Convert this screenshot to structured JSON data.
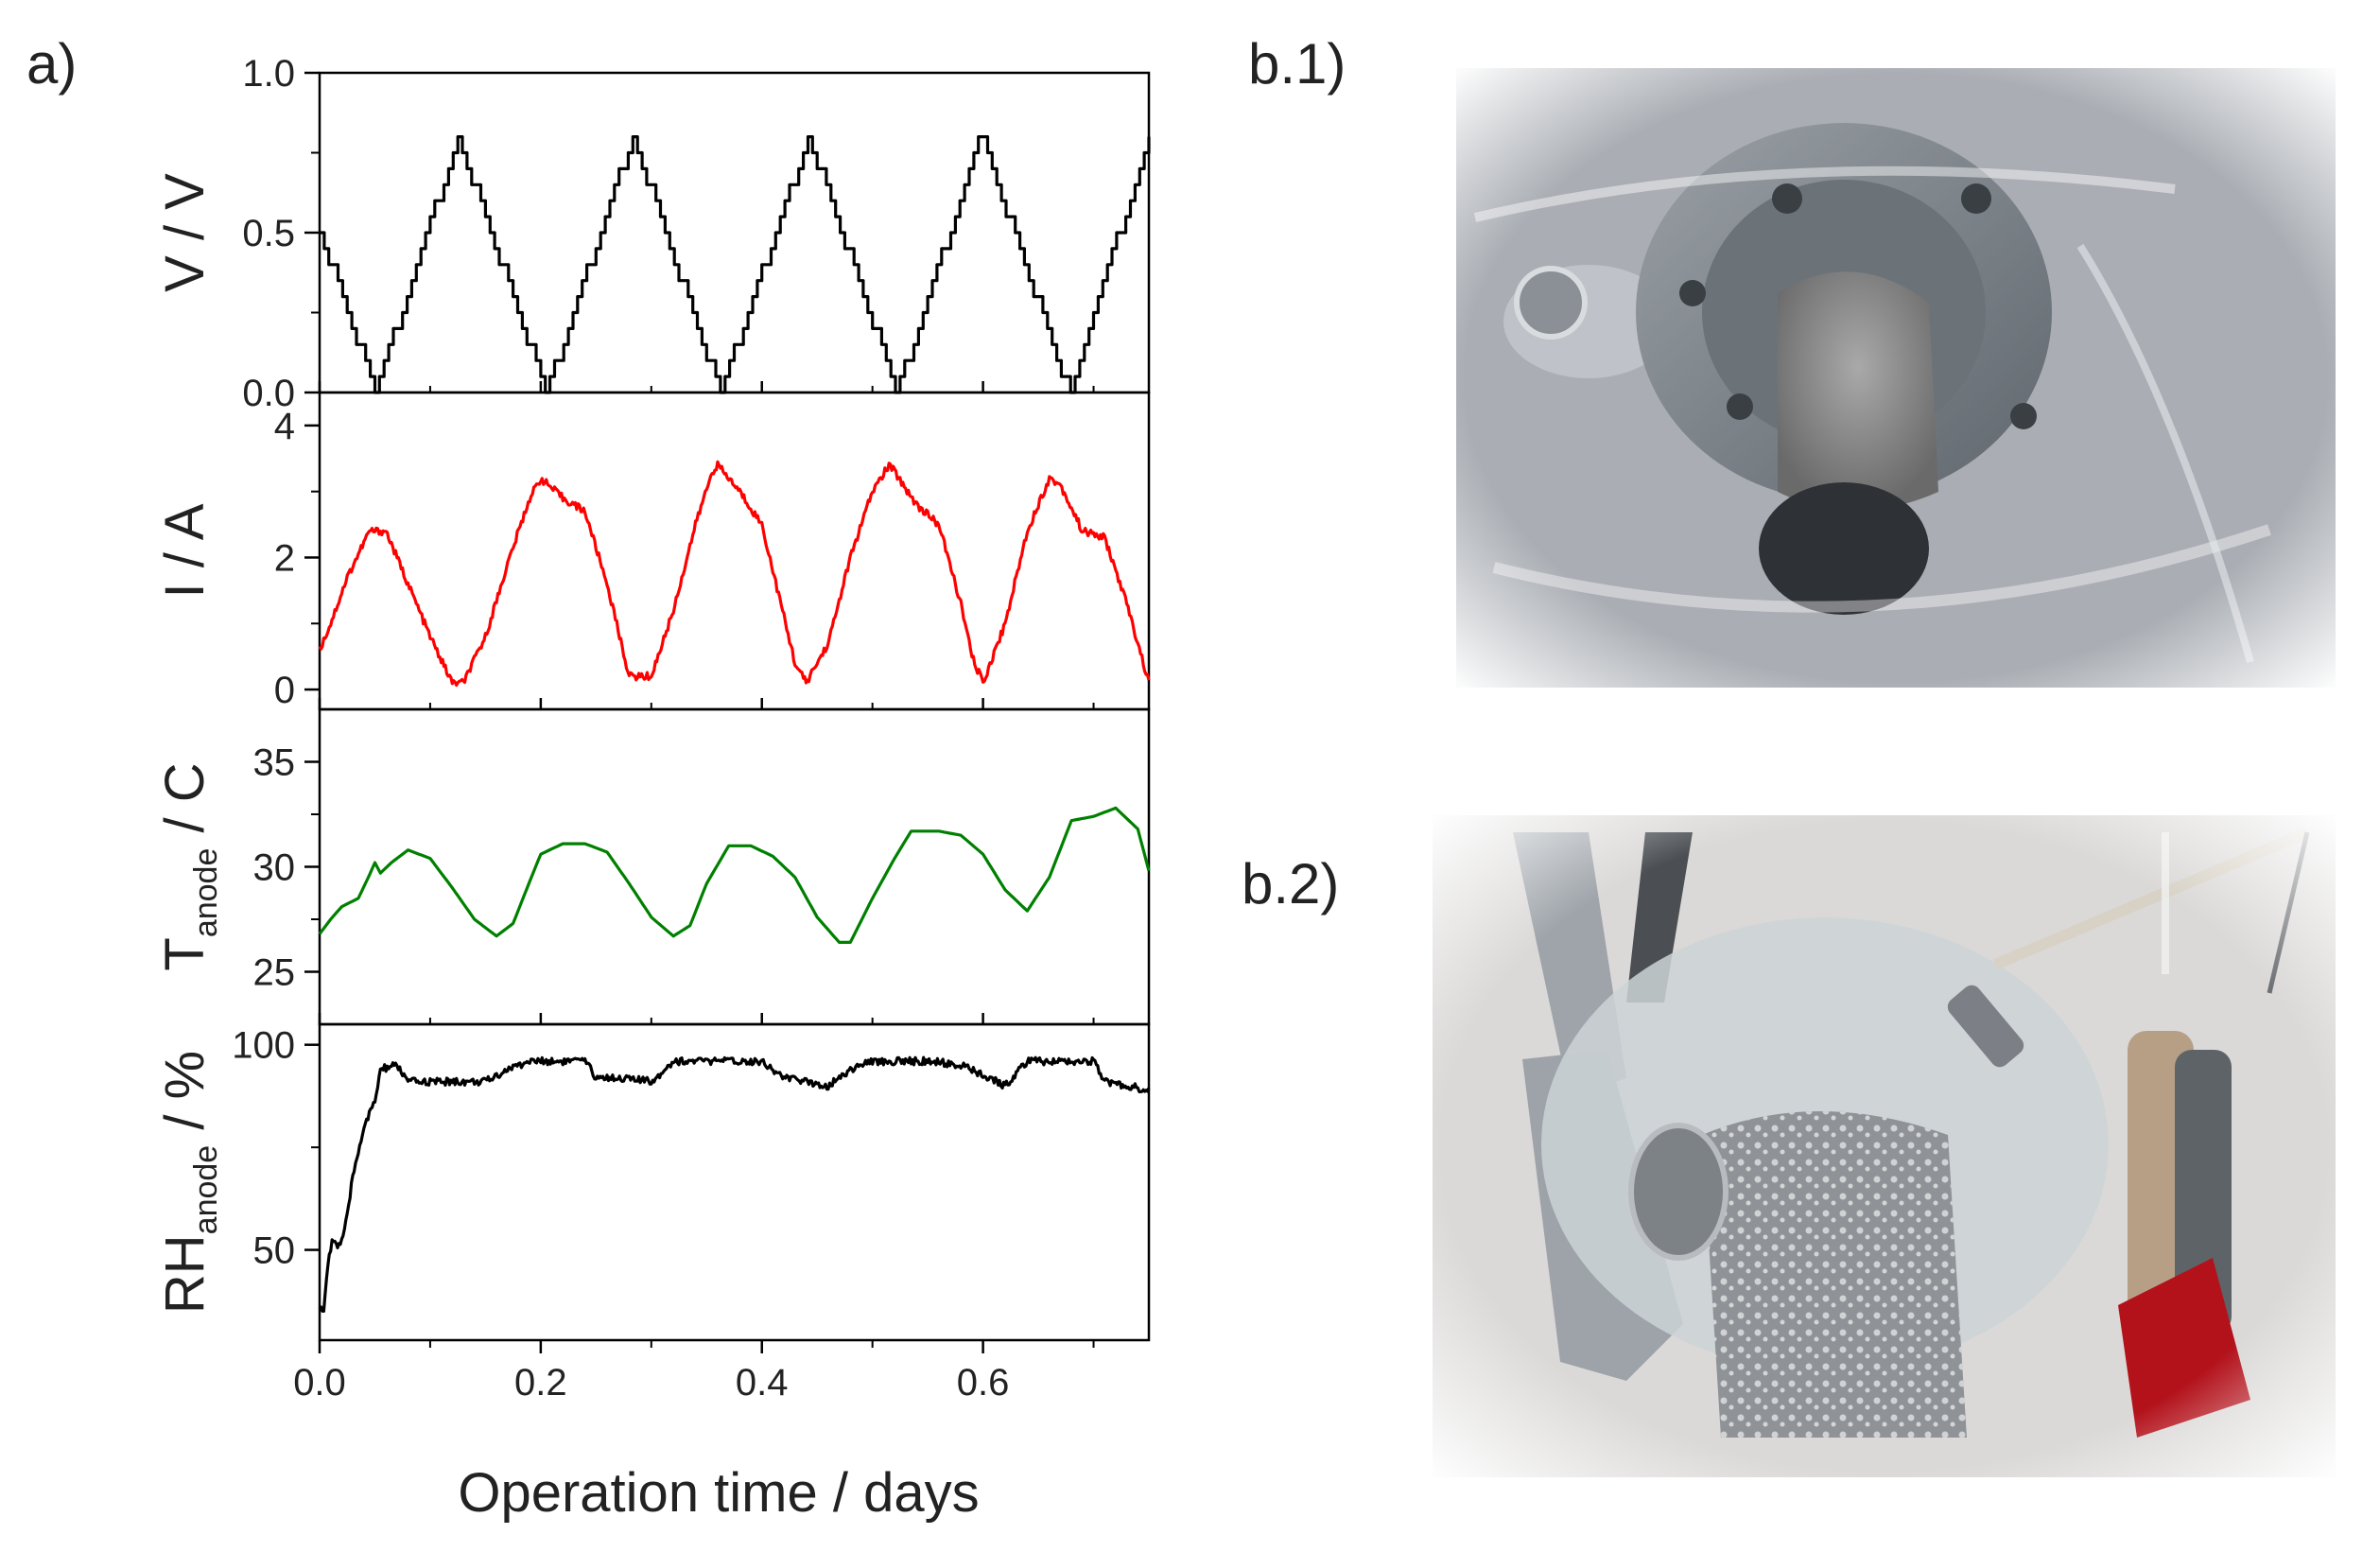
{
  "figure": {
    "panel_a_label": "a)",
    "panel_b1_label": "b.1)",
    "panel_b2_label": "b.2)",
    "x_axis_title": "Operation time / days",
    "photo_b1_subject": "sealed-cell-photo",
    "photo_b2_subject": "clamped-cell-photo"
  },
  "chart_data": [
    {
      "type": "line",
      "ylabel": "V / V",
      "ylim": [
        0.0,
        1.0
      ],
      "yticks": [
        "0.0",
        "0.5",
        "1.0"
      ],
      "xlim": [
        0.0,
        0.75
      ],
      "color": "#000000",
      "style": "staircase",
      "series": [
        {
          "x": [
            0.0,
            0.05,
            0.125,
            0.205,
            0.283,
            0.362,
            0.442,
            0.522,
            0.598,
            0.678,
            0.75
          ],
          "values": [
            0.5,
            0.0,
            0.8,
            0.0,
            0.8,
            0.0,
            0.8,
            0.0,
            0.8,
            0.0,
            0.8
          ]
        }
      ]
    },
    {
      "type": "line",
      "ylabel": "I / A",
      "ylim": [
        -0.3,
        4.5
      ],
      "yticks": [
        "0",
        "2",
        "4"
      ],
      "xlim": [
        0.0,
        0.75
      ],
      "color": "#ff0000",
      "style": "noisy",
      "series": [
        {
          "x": [
            0.0,
            0.01,
            0.025,
            0.045,
            0.06,
            0.08,
            0.1,
            0.12,
            0.13,
            0.15,
            0.17,
            0.19,
            0.2,
            0.22,
            0.24,
            0.26,
            0.27,
            0.28,
            0.3,
            0.32,
            0.34,
            0.355,
            0.36,
            0.38,
            0.4,
            0.42,
            0.43,
            0.44,
            0.46,
            0.48,
            0.5,
            0.515,
            0.52,
            0.54,
            0.56,
            0.58,
            0.59,
            0.6,
            0.62,
            0.64,
            0.66,
            0.67,
            0.69,
            0.71,
            0.73,
            0.75
          ],
          "values": [
            0.6,
            1.0,
            1.7,
            2.4,
            2.4,
            1.6,
            0.8,
            0.1,
            0.1,
            0.8,
            1.9,
            2.9,
            3.2,
            2.9,
            2.7,
            1.6,
            0.9,
            0.2,
            0.2,
            1.2,
            2.5,
            3.3,
            3.4,
            3.0,
            2.5,
            1.1,
            0.4,
            0.1,
            0.7,
            2.0,
            3.0,
            3.4,
            3.3,
            2.8,
            2.5,
            1.3,
            0.5,
            0.1,
            1.0,
            2.4,
            3.2,
            3.1,
            2.4,
            2.3,
            1.3,
            0.1
          ]
        }
      ]
    },
    {
      "type": "line",
      "ylabel_main": "T",
      "ylabel_sub": "anode",
      "ylabel_unit": " / C",
      "ylim": [
        22.5,
        37.5
      ],
      "yticks": [
        "25",
        "30",
        "35"
      ],
      "xlim": [
        0.0,
        0.75
      ],
      "color": "#008000",
      "style": "smooth",
      "series": [
        {
          "x": [
            0.0,
            0.01,
            0.02,
            0.035,
            0.045,
            0.05,
            0.055,
            0.065,
            0.08,
            0.1,
            0.12,
            0.14,
            0.16,
            0.175,
            0.19,
            0.2,
            0.22,
            0.24,
            0.26,
            0.28,
            0.3,
            0.32,
            0.335,
            0.35,
            0.37,
            0.39,
            0.41,
            0.43,
            0.45,
            0.47,
            0.48,
            0.5,
            0.52,
            0.535,
            0.56,
            0.58,
            0.6,
            0.62,
            0.64,
            0.66,
            0.68,
            0.7,
            0.72,
            0.74,
            0.75
          ],
          "values": [
            26.8,
            27.5,
            28.1,
            28.5,
            29.6,
            30.2,
            29.7,
            30.2,
            30.8,
            30.4,
            29.0,
            27.5,
            26.7,
            27.3,
            29.3,
            30.6,
            31.1,
            31.1,
            30.7,
            29.2,
            27.6,
            26.7,
            27.2,
            29.2,
            31.0,
            31.0,
            30.5,
            29.5,
            27.6,
            26.4,
            26.4,
            28.5,
            30.4,
            31.7,
            31.7,
            31.5,
            30.6,
            28.9,
            27.9,
            29.5,
            32.2,
            32.4,
            32.8,
            31.8,
            29.8
          ]
        }
      ]
    },
    {
      "type": "line",
      "ylabel_main": "RH",
      "ylabel_sub": "anode",
      "ylabel_unit": " / %",
      "ylim": [
        28,
        105
      ],
      "yticks": [
        "50",
        "100"
      ],
      "xlim": [
        0.0,
        0.75
      ],
      "color": "#000000",
      "style": "noisy",
      "series": [
        {
          "x": [
            0.0,
            0.004,
            0.008,
            0.012,
            0.016,
            0.02,
            0.025,
            0.03,
            0.04,
            0.05,
            0.055,
            0.07,
            0.08,
            0.1,
            0.15,
            0.17,
            0.19,
            0.2,
            0.24,
            0.25,
            0.27,
            0.3,
            0.32,
            0.34,
            0.4,
            0.42,
            0.46,
            0.48,
            0.5,
            0.55,
            0.58,
            0.62,
            0.64,
            0.66,
            0.7,
            0.71,
            0.73,
            0.75
          ],
          "values": [
            36,
            35,
            48,
            53,
            51,
            52,
            58,
            68,
            80,
            86,
            94,
            95,
            91,
            91,
            91,
            94,
            96,
            96,
            96,
            92,
            92,
            91,
            96,
            96,
            96,
            92,
            90,
            94,
            96,
            96,
            95,
            90,
            96,
            96,
            96,
            91,
            90,
            89
          ]
        }
      ]
    }
  ]
}
